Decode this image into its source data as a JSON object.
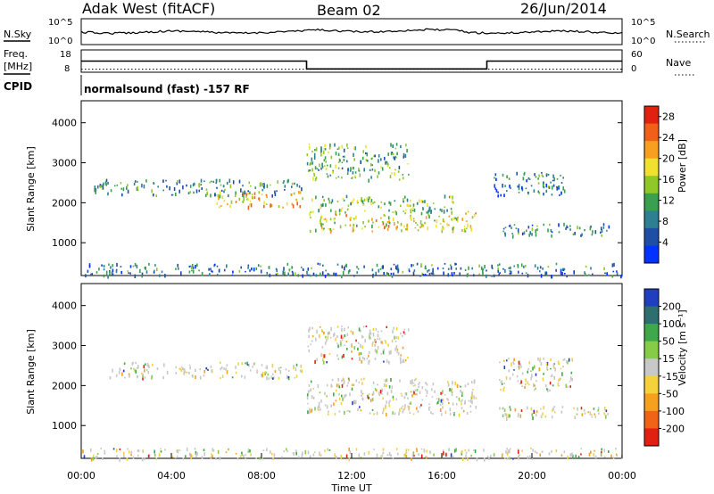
{
  "header": {
    "station": "Adak West (fitACF)",
    "beam": "Beam 02",
    "date": "26/Jun/2014"
  },
  "top_panels": {
    "nsky_label": "N.Sky",
    "nsky_ticks": [
      "10^5",
      "10^0"
    ],
    "nsearch_label": "N.Search",
    "nsearch_ticks": [
      "10^5",
      "10^0"
    ],
    "freq_label": "Freq.",
    "freq_unit": "[MHz]",
    "freq_ticks": [
      "18",
      "8"
    ],
    "nave_label": "Nave",
    "nave_ticks": [
      "60",
      "0"
    ],
    "cpid_label": "CPID",
    "cpid_text": "normalsound (fast) -157 RF",
    "freq_series": {
      "x": [
        0,
        10.0,
        10.0,
        18.0,
        18.0,
        24
      ],
      "y": [
        13,
        13,
        9.5,
        9.5,
        13,
        13
      ],
      "ylim": [
        8,
        18
      ]
    },
    "nave_series": {
      "y": 8,
      "ylim": [
        0,
        60
      ]
    }
  },
  "chart_data": [
    {
      "type": "heatmap",
      "ylabel": "Slant Range [km]",
      "yticks": [
        "1000",
        "2000",
        "3000",
        "4000"
      ],
      "ytick_values": [
        1000,
        2000,
        3000,
        4000
      ],
      "ylim": [
        180,
        4550
      ],
      "xlim": [
        0,
        24
      ],
      "colorbar": {
        "label": "Power [dB]",
        "ticks": [
          "4",
          "8",
          "12",
          "16",
          "20",
          "24",
          "28"
        ],
        "tick_values": [
          4,
          8,
          12,
          16,
          20,
          24,
          28
        ],
        "range": [
          0,
          30
        ],
        "colors": [
          "#0033ff",
          "#1f4fa5",
          "#2d7f91",
          "#3aa050",
          "#90c828",
          "#f0e030",
          "#f7a020",
          "#f06018",
          "#e02010"
        ]
      },
      "echo_bands": [
        {
          "t0": 0.5,
          "t1": 9.8,
          "r0": 2200,
          "r1": 2600,
          "level": 8
        },
        {
          "t0": 6.0,
          "t1": 9.8,
          "r0": 1900,
          "r1": 2300,
          "level": 18
        },
        {
          "t0": 10.0,
          "t1": 14.5,
          "r0": 2600,
          "r1": 3500,
          "level": 10
        },
        {
          "t0": 10.0,
          "t1": 17.5,
          "r0": 1300,
          "r1": 1800,
          "level": 16
        },
        {
          "t0": 10.2,
          "t1": 16.5,
          "r0": 1800,
          "r1": 2200,
          "level": 12
        },
        {
          "t0": 18.3,
          "t1": 21.5,
          "r0": 2200,
          "r1": 2800,
          "level": 6
        },
        {
          "t0": 18.5,
          "t1": 23.5,
          "r0": 1200,
          "r1": 1500,
          "level": 6
        },
        {
          "t0": 0.0,
          "t1": 24.0,
          "r0": 190,
          "r1": 500,
          "level": 6
        }
      ]
    },
    {
      "type": "heatmap",
      "ylabel": "Slant Range [km]",
      "yticks": [
        "1000",
        "2000",
        "3000",
        "4000"
      ],
      "ytick_values": [
        1000,
        2000,
        3000,
        4000
      ],
      "ylim": [
        180,
        4550
      ],
      "xlim": [
        0,
        24
      ],
      "colorbar": {
        "label": "Velocity [m s⁻¹]",
        "ticks": [
          "200",
          "100",
          "50",
          "15",
          "-15",
          "-50",
          "-100",
          "-200"
        ],
        "colors": [
          "#1f3fbf",
          "#2e6e6e",
          "#3fa84a",
          "#86cc48",
          "#c8c8c8",
          "#f5d23c",
          "#f5a01e",
          "#f06418",
          "#e02010"
        ]
      },
      "xticks": [
        "00:00",
        "04:00",
        "08:00",
        "12:00",
        "16:00",
        "20:00",
        "00:00"
      ],
      "xtick_values": [
        0,
        4,
        8,
        12,
        16,
        20,
        24
      ],
      "xlabel": "Time UT",
      "echo_bands": [
        {
          "t0": 1.2,
          "t1": 9.8,
          "r0": 2200,
          "r1": 2600,
          "level": 4
        },
        {
          "t0": 10.0,
          "t1": 14.5,
          "r0": 2600,
          "r1": 3500,
          "level": 3
        },
        {
          "t0": 10.0,
          "t1": 17.5,
          "r0": 1300,
          "r1": 2200,
          "level": 5
        },
        {
          "t0": 18.5,
          "t1": 21.8,
          "r0": 1900,
          "r1": 2700,
          "level": 4
        },
        {
          "t0": 18.5,
          "t1": 23.5,
          "r0": 1200,
          "r1": 1500,
          "level": 4
        },
        {
          "t0": 0.0,
          "t1": 24.0,
          "r0": 190,
          "r1": 450,
          "level": 3
        }
      ]
    }
  ]
}
